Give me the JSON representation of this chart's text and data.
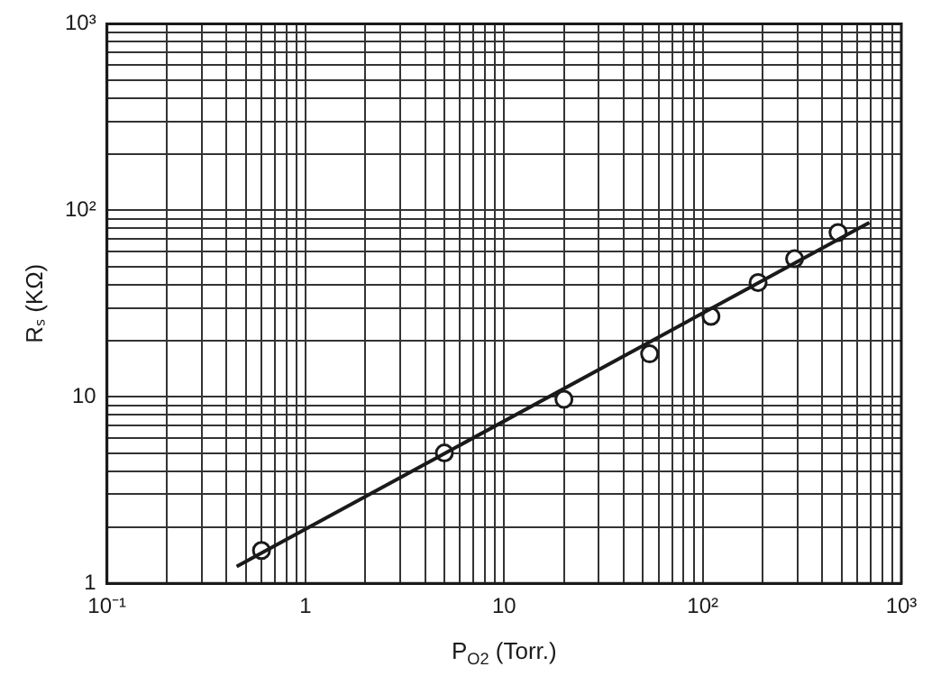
{
  "chart_data": {
    "type": "scatter",
    "xlabel": "P$_{O2}$ (Torr.)",
    "ylabel": "Rₛ (KΩ)",
    "log": "xy",
    "grid": true,
    "marker": "circle",
    "xlim": [
      0.1,
      1000
    ],
    "ylim": [
      1,
      1000
    ],
    "xticks": [
      {
        "value": 0.1,
        "label": "10⁻¹"
      },
      {
        "value": 0.2,
        "label": null
      },
      {
        "value": 0.3,
        "label": null
      },
      {
        "value": 0.4,
        "label": null
      },
      {
        "value": 0.5,
        "label": null
      },
      {
        "value": 0.6,
        "label": null
      },
      {
        "value": 0.7,
        "label": null
      },
      {
        "value": 0.8,
        "label": null
      },
      {
        "value": 0.9,
        "label": null
      },
      1,
      {
        "value": 2,
        "label": null
      },
      {
        "value": 3,
        "label": null
      },
      {
        "value": 4,
        "label": null
      },
      {
        "value": 5,
        "label": null
      },
      {
        "value": 6,
        "label": null
      },
      {
        "value": 7,
        "label": null
      },
      {
        "value": 8,
        "label": null
      },
      {
        "value": 9,
        "label": null
      },
      10,
      {
        "value": 20,
        "label": null
      },
      {
        "value": 30,
        "label": null
      },
      {
        "value": 40,
        "label": null
      },
      {
        "value": 50,
        "label": null
      },
      {
        "value": 60,
        "label": null
      },
      {
        "value": 70,
        "label": null
      },
      {
        "value": 80,
        "label": null
      },
      {
        "value": 90,
        "label": null
      },
      {
        "value": 100,
        "label": "10²"
      },
      {
        "value": 200,
        "label": null
      },
      {
        "value": 300,
        "label": null
      },
      {
        "value": 400,
        "label": null
      },
      {
        "value": 500,
        "label": null
      },
      {
        "value": 600,
        "label": null
      },
      {
        "value": 700,
        "label": null
      },
      {
        "value": 800,
        "label": null
      },
      {
        "value": 900,
        "label": null
      },
      {
        "value": 1000,
        "label": "10³"
      }
    ],
    "yticks": [
      1,
      {
        "value": 2,
        "label": null
      },
      {
        "value": 3,
        "label": null
      },
      {
        "value": 4,
        "label": null
      },
      {
        "value": 5,
        "label": null
      },
      {
        "value": 6,
        "label": null
      },
      {
        "value": 7,
        "label": null
      },
      {
        "value": 8,
        "label": null
      },
      {
        "value": 9,
        "label": null
      },
      10,
      {
        "value": 20,
        "label": null
      },
      {
        "value": 30,
        "label": null
      },
      {
        "value": 40,
        "label": null
      },
      {
        "value": 50,
        "label": null
      },
      {
        "value": 60,
        "label": null
      },
      {
        "value": 70,
        "label": null
      },
      {
        "value": 80,
        "label": null
      },
      {
        "value": 90,
        "label": null
      },
      {
        "value": 100,
        "label": "10²"
      },
      {
        "value": 200,
        "label": null
      },
      {
        "value": 300,
        "label": null
      },
      {
        "value": 400,
        "label": null
      },
      {
        "value": 500,
        "label": null
      },
      {
        "value": 600,
        "label": null
      },
      {
        "value": 700,
        "label": null
      },
      {
        "value": 800,
        "label": null
      },
      {
        "value": 900,
        "label": null
      },
      {
        "value": 1000,
        "label": "10³"
      }
    ],
    "series": [
      {
        "color": "#1a1a1a",
        "x": [
          0.6,
          5,
          20,
          54,
          110,
          190,
          290,
          480
        ],
        "values": [
          1.5,
          5,
          9.7,
          17,
          27,
          41,
          55,
          76
        ]
      },
      {
        "type": "line",
        "color": "#1a1a1a",
        "marker": "none",
        "x": [
          0.45,
          690
        ],
        "values": [
          1.23,
          86
        ]
      }
    ]
  }
}
